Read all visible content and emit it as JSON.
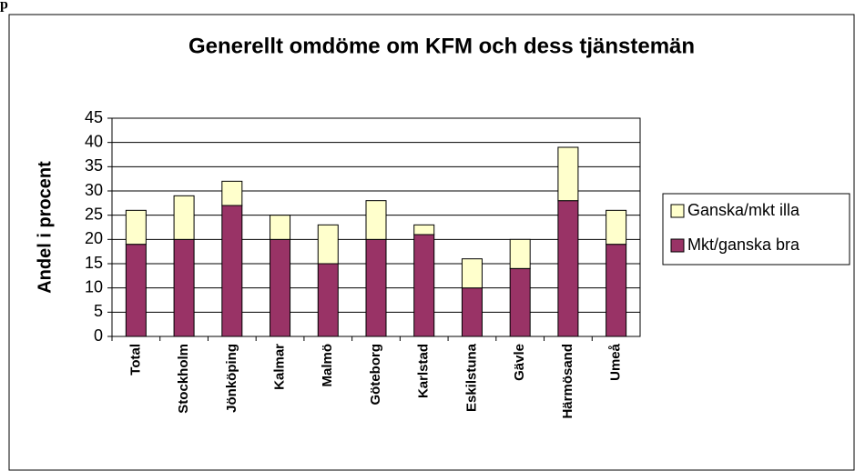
{
  "header_fragment": "p",
  "chart_data": {
    "type": "stacked_bar",
    "title": "Generellt omdöme om KFM och dess tjänstemän",
    "y_label": "Andel i procent",
    "categories": [
      "Total",
      "Stockholm",
      "Jönköping",
      "Kalmar",
      "Malmö",
      "Göteborg",
      "Karlstad",
      "Eskilstuna",
      "Gävle",
      "Härmösand",
      "Umeå"
    ],
    "series": [
      {
        "name": "Mkt/ganska bra",
        "color": "#993366",
        "values": [
          19,
          20,
          27,
          20,
          15,
          20,
          21,
          10,
          14,
          28,
          19
        ]
      },
      {
        "name": "Ganska/mkt illa",
        "color": "#ffffcc",
        "values": [
          7,
          9,
          5,
          5,
          8,
          8,
          2,
          6,
          6,
          11,
          7
        ]
      }
    ],
    "ylim": [
      0,
      45
    ],
    "yticks": [
      0,
      5,
      10,
      15,
      20,
      25,
      30,
      35,
      40,
      45
    ],
    "grid": true,
    "legend": "right"
  }
}
